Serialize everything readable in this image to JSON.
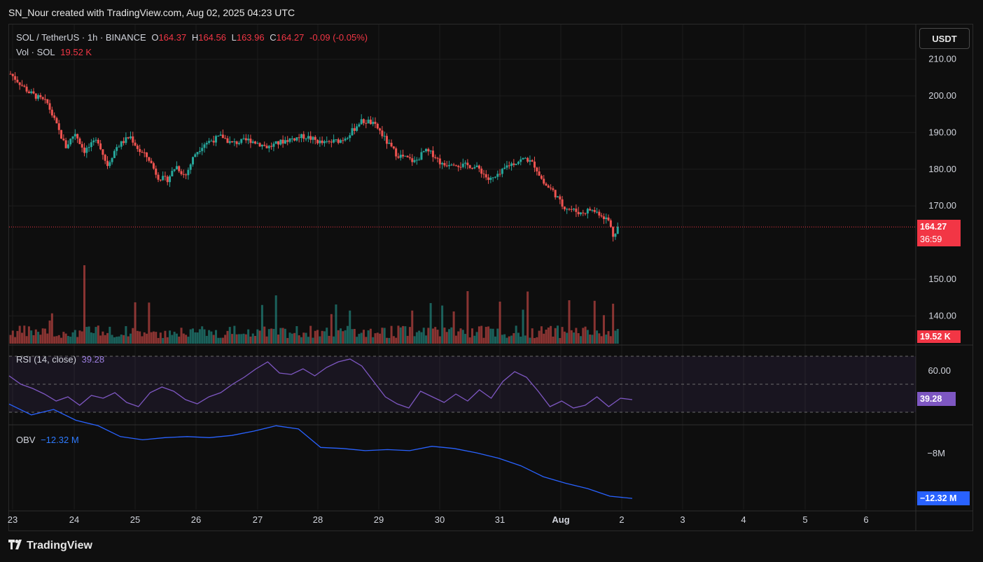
{
  "header": {
    "credit": "SN_Nour created with TradingView.com, Aug 02, 2025 04:23 UTC"
  },
  "legend": {
    "symbol": "SOL / TetherUS · 1h · BINANCE",
    "open_label": "O",
    "open": "164.37",
    "high_label": "H",
    "high": "164.56",
    "low_label": "L",
    "low": "163.96",
    "close_label": "C",
    "close": "164.27",
    "change": "-0.09 (-0.05%)",
    "vol_label": "Vol · SOL",
    "vol_value": "19.52 K",
    "rsi_label": "RSI (14, close)",
    "rsi_value": "39.28",
    "obv_label": "OBV",
    "obv_value": "−12.32 M"
  },
  "currency_button": "USDT",
  "price_tag": {
    "price": "164.27",
    "countdown": "36:59"
  },
  "vol_tag": "19.52 K",
  "rsi_tag": "39.28",
  "obv_tag": "−12.32 M",
  "footer": {
    "brand": "TradingView",
    "logo_icon": "tradingview-logo-icon"
  },
  "colors": {
    "up": "#26a69a",
    "down": "#ef5350",
    "rsi": "#7e57c2",
    "obv": "#2962ff",
    "price_tag": "#f23645",
    "rsi_tag": "#7e57c2",
    "obv_tag": "#2962ff"
  },
  "chart_data": {
    "type": "candlestick",
    "x_tick_labels": [
      "23",
      "24",
      "25",
      "26",
      "27",
      "28",
      "29",
      "30",
      "31",
      "Aug",
      "2",
      "3",
      "4",
      "5",
      "6"
    ],
    "price_axis_ticks": [
      210,
      200,
      190,
      180,
      170,
      150,
      140
    ],
    "price_axis_labels": [
      "210.00",
      "200.00",
      "190.00",
      "180.00",
      "170.00",
      "150.00",
      "140.00"
    ],
    "last_price": 164.27,
    "price_path": [
      [
        0,
        206
      ],
      [
        4,
        201
      ],
      [
        8,
        198
      ],
      [
        12,
        186
      ],
      [
        14,
        190
      ],
      [
        16,
        185
      ],
      [
        19,
        188
      ],
      [
        21,
        181
      ],
      [
        23,
        186
      ],
      [
        26,
        189
      ],
      [
        28,
        185
      ],
      [
        30,
        183
      ],
      [
        32,
        178
      ],
      [
        34,
        177
      ],
      [
        36,
        181
      ],
      [
        38,
        178
      ],
      [
        40,
        184
      ],
      [
        42,
        187
      ],
      [
        44,
        188
      ],
      [
        46,
        189
      ],
      [
        48,
        187
      ],
      [
        52,
        188
      ],
      [
        56,
        186
      ],
      [
        60,
        188
      ],
      [
        64,
        189
      ],
      [
        68,
        187
      ],
      [
        72,
        188
      ],
      [
        74,
        190
      ],
      [
        76,
        193
      ],
      [
        78,
        193
      ],
      [
        80,
        191
      ],
      [
        82,
        187
      ],
      [
        84,
        184
      ],
      [
        86,
        183
      ],
      [
        88,
        182
      ],
      [
        90,
        185
      ],
      [
        92,
        184
      ],
      [
        94,
        181
      ],
      [
        96,
        182
      ],
      [
        98,
        181
      ],
      [
        100,
        181
      ],
      [
        102,
        180
      ],
      [
        104,
        177
      ],
      [
        106,
        178
      ],
      [
        108,
        181
      ],
      [
        110,
        182
      ],
      [
        112,
        183
      ],
      [
        114,
        181
      ],
      [
        116,
        176
      ],
      [
        118,
        174
      ],
      [
        120,
        170
      ],
      [
        122,
        169
      ],
      [
        124,
        168
      ],
      [
        126,
        169
      ],
      [
        128,
        168
      ],
      [
        130,
        166
      ],
      [
        131,
        162
      ],
      [
        132,
        164.3
      ]
    ],
    "series": [
      {
        "name": "Vol · SOL",
        "last_value": 19520
      },
      {
        "name": "RSI (14, close)",
        "last_value": 39.28,
        "axis_labels": [
          "60.00"
        ],
        "values": [
          56,
          50,
          47,
          43,
          38,
          41,
          35,
          42,
          40,
          44,
          37,
          34,
          44,
          48,
          45,
          39,
          36,
          41,
          44,
          50,
          55,
          61,
          66,
          58,
          57,
          61,
          56,
          62,
          66,
          68,
          63,
          52,
          41,
          36,
          33,
          45,
          41,
          37,
          43,
          38,
          46,
          40,
          52,
          59,
          55,
          45,
          34,
          38,
          33,
          35,
          41,
          34,
          40,
          39
        ]
      },
      {
        "name": "OBV",
        "last_value": -12.32,
        "unit": "M",
        "axis_labels": [
          "−8M"
        ],
        "values": [
          -3.5,
          -4.5,
          -4.0,
          -5.0,
          -5.5,
          -6.5,
          -6.8,
          -6.6,
          -6.5,
          -6.6,
          -6.4,
          -6.0,
          -5.5,
          -5.8,
          -7.5,
          -7.6,
          -7.8,
          -7.7,
          -7.8,
          -7.4,
          -7.6,
          -8.0,
          -8.5,
          -9.2,
          -10.2,
          -10.8,
          -11.3,
          -12.0,
          -12.2
        ]
      }
    ]
  }
}
